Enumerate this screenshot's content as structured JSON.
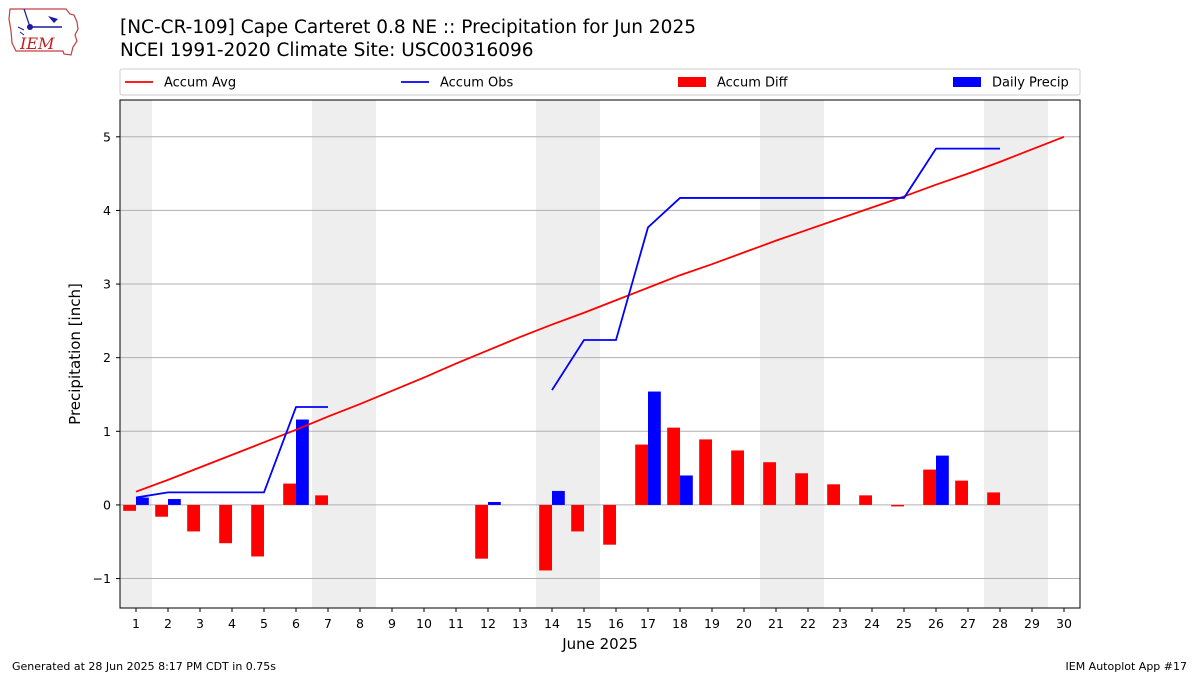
{
  "header": {
    "title_line1": "[NC-CR-109] Cape Carteret 0.8 NE :: Precipitation for Jun 2025",
    "title_line2": "NCEI 1991-2020 Climate Site: USC00316096"
  },
  "logo": {
    "text": "IEM"
  },
  "footer": {
    "left": "Generated at 28 Jun 2025 8:17 PM CDT in 0.75s",
    "right": "IEM Autoplot App #17"
  },
  "chart_data": {
    "type": "bar",
    "xlabel": "June 2025",
    "ylabel": "Precipitation [inch]",
    "xlim": [
      0.5,
      30.5
    ],
    "ylim": [
      -1.4,
      5.5
    ],
    "yticks": [
      -1,
      0,
      1,
      2,
      3,
      4,
      5
    ],
    "ytick_labels": [
      "−1",
      "0",
      "1",
      "2",
      "3",
      "4",
      "5"
    ],
    "x_ticks": [
      1,
      2,
      3,
      4,
      5,
      6,
      7,
      8,
      9,
      10,
      11,
      12,
      13,
      14,
      15,
      16,
      17,
      18,
      19,
      20,
      21,
      22,
      23,
      24,
      25,
      26,
      27,
      28,
      29,
      30
    ],
    "grid": "horizontal",
    "legend_position": "top",
    "weekend_shading": [
      [
        0.5,
        1.5
      ],
      [
        6.5,
        8.5
      ],
      [
        13.5,
        15.5
      ],
      [
        20.5,
        22.5
      ],
      [
        27.5,
        29.5
      ]
    ],
    "colors": {
      "avg": "#ff0000",
      "obs": "#0000ff",
      "diff": "#ff0000",
      "daily": "#0000ff",
      "shade": "#eeeeee"
    },
    "legend": [
      {
        "key": "avg",
        "label": "Accum Avg",
        "kind": "line"
      },
      {
        "key": "obs",
        "label": "Accum Obs",
        "kind": "line"
      },
      {
        "key": "diff",
        "label": "Accum Diff",
        "kind": "bar"
      },
      {
        "key": "daily",
        "label": "Daily Precip",
        "kind": "bar"
      }
    ],
    "accum_avg": {
      "x": [
        1,
        2,
        3,
        4,
        5,
        6,
        7,
        8,
        9,
        10,
        11,
        12,
        13,
        14,
        15,
        16,
        17,
        18,
        19,
        20,
        21,
        22,
        23,
        24,
        25,
        26,
        27,
        28,
        29,
        30
      ],
      "values": [
        0.18,
        0.34,
        0.51,
        0.68,
        0.85,
        1.02,
        1.2,
        1.37,
        1.55,
        1.73,
        1.92,
        2.1,
        2.28,
        2.45,
        2.61,
        2.78,
        2.95,
        3.12,
        3.27,
        3.43,
        3.59,
        3.74,
        3.89,
        4.04,
        4.19,
        4.35,
        4.5,
        4.66,
        4.83,
        5.0
      ]
    },
    "accum_obs": {
      "segments": [
        {
          "x": [
            1,
            2,
            3,
            4,
            5,
            6,
            7
          ],
          "values": [
            0.1,
            0.17,
            0.17,
            0.17,
            0.17,
            1.33,
            1.33
          ]
        },
        {
          "x": [
            14,
            15,
            16,
            17,
            18,
            19,
            20,
            21,
            22,
            23,
            24,
            25,
            26,
            27,
            28
          ],
          "values": [
            1.56,
            2.24,
            2.24,
            3.77,
            4.17,
            4.17,
            4.17,
            4.17,
            4.17,
            4.17,
            4.17,
            4.17,
            4.84,
            4.84,
            4.84
          ]
        }
      ]
    },
    "accum_diff": {
      "x": [
        1,
        2,
        3,
        4,
        5,
        6,
        7,
        12,
        14,
        15,
        16,
        17,
        18,
        19,
        20,
        21,
        22,
        23,
        24,
        25,
        26,
        27,
        28
      ],
      "values": [
        -0.08,
        -0.16,
        -0.36,
        -0.52,
        -0.7,
        0.29,
        0.13,
        -0.73,
        -0.89,
        -0.36,
        -0.54,
        0.82,
        1.05,
        0.89,
        0.74,
        0.58,
        0.43,
        0.28,
        0.13,
        -0.02,
        0.48,
        0.33,
        0.17
      ]
    },
    "daily_precip": {
      "x": [
        1,
        2,
        6,
        12,
        14,
        17,
        18,
        26
      ],
      "values": [
        0.1,
        0.08,
        1.16,
        0.04,
        0.19,
        1.54,
        0.4,
        0.67
      ]
    }
  }
}
